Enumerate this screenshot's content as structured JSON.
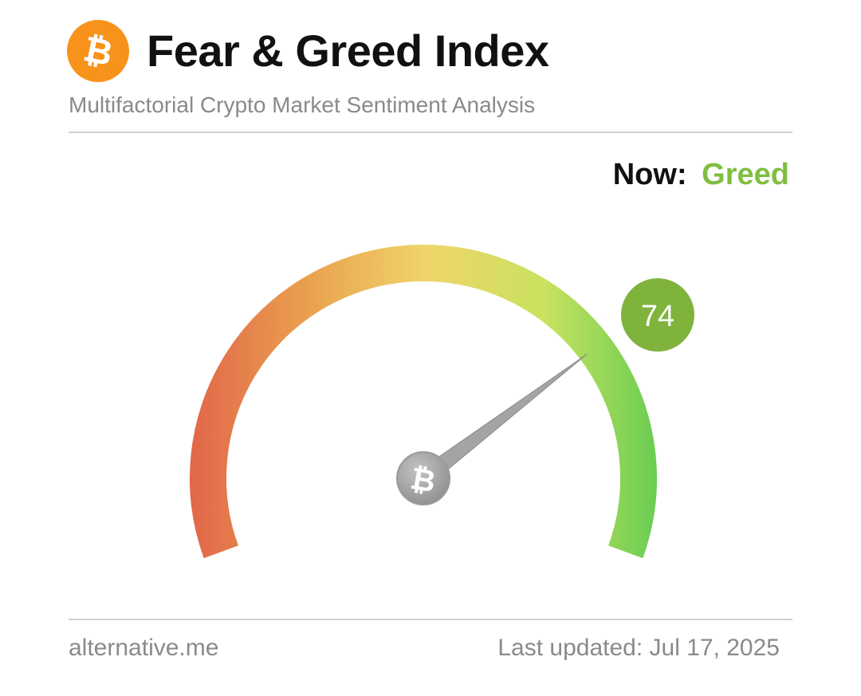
{
  "header": {
    "title": "Fear & Greed Index",
    "subtitle": "Multifactorial Crypto Market Sentiment Analysis",
    "logo_icon": "bitcoin-icon",
    "logo_color": "#f7931a"
  },
  "status": {
    "label": "Now:",
    "value": "Greed",
    "value_color": "#7fbf3f"
  },
  "gauge": {
    "value": 74,
    "value_text": "74",
    "min": 0,
    "max": 100,
    "badge_color": "#7fb33c",
    "needle_hub_icon": "bitcoin-icon",
    "gradient_colors": [
      "#e2674a",
      "#e9a14e",
      "#f0d56a",
      "#c9e25f",
      "#66cc52"
    ]
  },
  "footer": {
    "source": "alternative.me",
    "updated": "Last updated: Jul 17, 2025"
  }
}
